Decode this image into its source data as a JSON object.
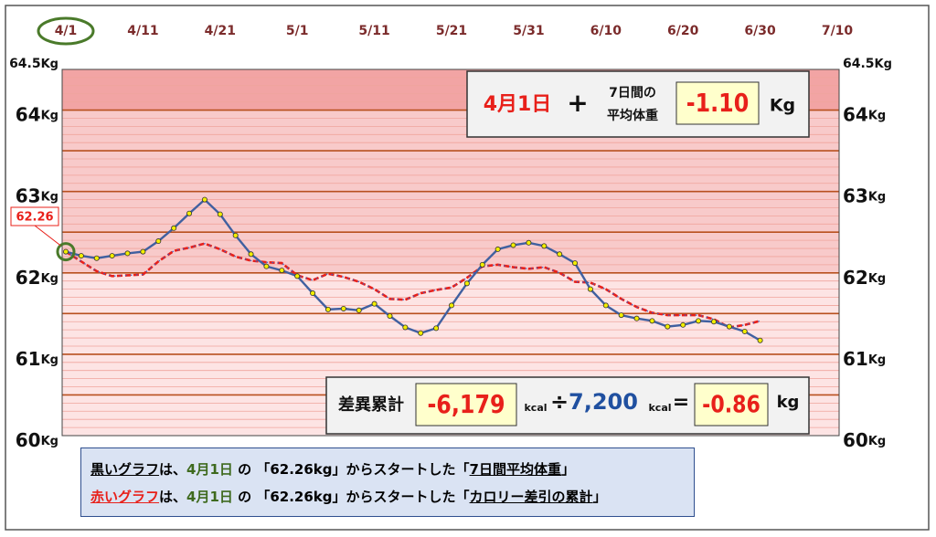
{
  "chart_data": {
    "type": "line",
    "x": [
      "4/1",
      "4/3",
      "4/5",
      "4/7",
      "4/9",
      "4/11",
      "4/13",
      "4/15",
      "4/17",
      "4/19",
      "4/21",
      "4/23",
      "4/25",
      "4/27",
      "4/29",
      "5/1",
      "5/3",
      "5/5",
      "5/7",
      "5/9",
      "5/11",
      "5/13",
      "5/15",
      "5/17",
      "5/19",
      "5/21",
      "5/23",
      "5/25",
      "5/27",
      "5/29",
      "5/31",
      "6/2",
      "6/4",
      "6/6",
      "6/8",
      "6/10",
      "6/12",
      "6/14",
      "6/16",
      "6/18",
      "6/20",
      "6/22",
      "6/24",
      "6/26",
      "6/28",
      "6/30"
    ],
    "series": [
      {
        "name": "黒いグラフ",
        "color": "#4060a0",
        "marker_color": "#f2ee00",
        "values": [
          62.26,
          62.21,
          62.18,
          62.21,
          62.24,
          62.26,
          62.39,
          62.55,
          62.73,
          62.9,
          62.72,
          62.46,
          62.23,
          62.08,
          62.03,
          61.96,
          61.75,
          61.55,
          61.56,
          61.54,
          61.62,
          61.47,
          61.33,
          61.26,
          61.32,
          61.6,
          61.87,
          62.1,
          62.29,
          62.34,
          62.37,
          62.33,
          62.23,
          62.12,
          61.8,
          61.6,
          61.48,
          61.44,
          61.41,
          61.34,
          61.36,
          61.41,
          61.4,
          61.34,
          61.28,
          61.17
        ]
      },
      {
        "name": "赤いグラフ",
        "color": "#e8201a",
        "values": [
          62.26,
          62.14,
          62.02,
          61.96,
          61.97,
          61.98,
          62.14,
          62.27,
          62.31,
          62.36,
          62.29,
          62.2,
          62.15,
          62.13,
          62.12,
          61.97,
          61.91,
          61.99,
          61.95,
          61.89,
          61.8,
          61.68,
          61.67,
          61.75,
          61.79,
          61.82,
          61.94,
          62.08,
          62.1,
          62.07,
          62.05,
          62.07,
          62.0,
          61.89,
          61.88,
          61.8,
          61.68,
          61.58,
          61.51,
          61.48,
          61.48,
          61.48,
          61.43,
          61.33,
          61.36,
          61.41
        ]
      }
    ],
    "xlim": [
      "4/1",
      "7/10"
    ],
    "xticks": [
      "4/1",
      "4/11",
      "4/21",
      "5/1",
      "5/11",
      "5/21",
      "5/31",
      "6/10",
      "6/20",
      "6/30",
      "7/10"
    ],
    "ylim": [
      60,
      64.5
    ],
    "yticks": [
      64.5,
      64,
      63,
      62,
      61,
      60
    ],
    "y_unit": "Kg",
    "major_gridlines": [
      64,
      63.5,
      63,
      62.5,
      62,
      61.5,
      61,
      60.5
    ],
    "minor_grid_step": 0.1,
    "bands": [
      {
        "from": 60,
        "to": 62,
        "color": "#fde4e4"
      },
      {
        "from": 62,
        "to": 64,
        "color": "#f8caca"
      },
      {
        "from": 64,
        "to": 64.5,
        "color": "#f2a4a4"
      }
    ],
    "start_label": "62.26",
    "summary_top": {
      "date": "4月1日",
      "plus": "+",
      "label_1": "7日間の",
      "label_2": "平均体重",
      "value": "-1.10",
      "unit": "Kg"
    },
    "summary_bottom": {
      "label": "差異累計",
      "value": "-6,179",
      "unit": "kcal",
      "divide": "÷",
      "divisor": "7,200",
      "equals": "=",
      "result": "-0.86",
      "result_unit": "kg"
    },
    "notes": [
      [
        "は、",
        "4月1日",
        " の 「",
        "62.26kg",
        "」からスタートした「",
        "7日間平均体重",
        "」"
      ],
      [
        "は、",
        "4月1日",
        " の 「",
        "62.26kg",
        "」からスタートした「",
        "カロリー差引の累計",
        "」"
      ]
    ]
  }
}
